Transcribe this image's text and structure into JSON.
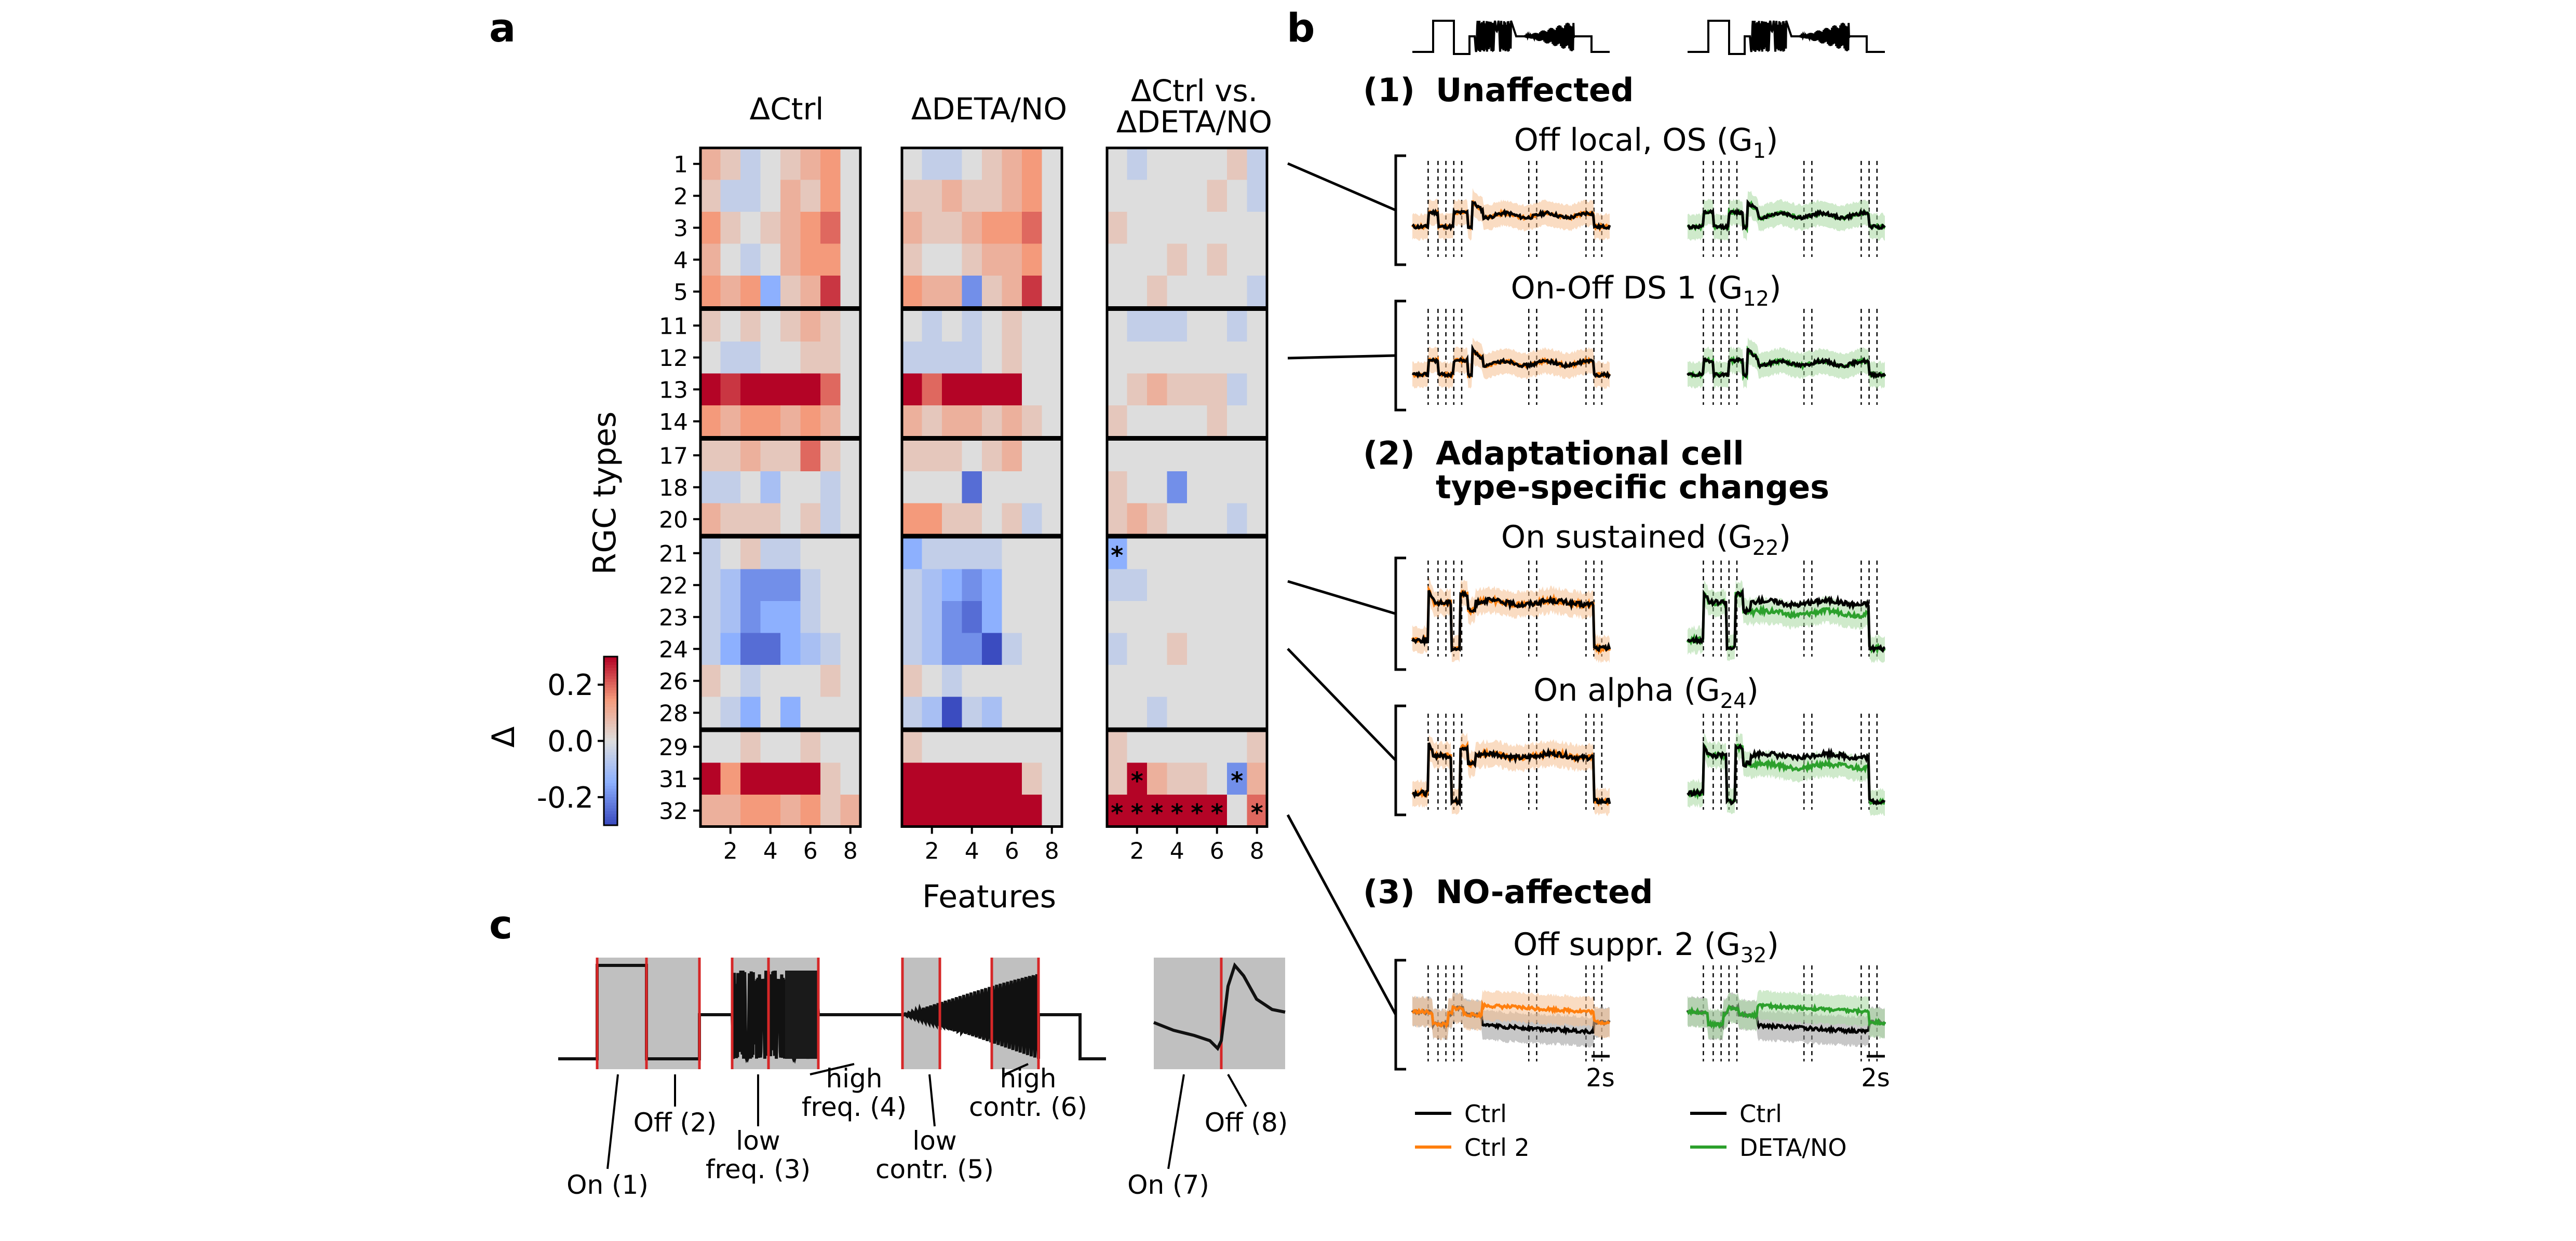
{
  "panel_labels": {
    "a": "a",
    "b": "b",
    "c": "c"
  },
  "heatmaps": {
    "titles": [
      "ΔCtrl",
      "ΔDETA/NO"
    ],
    "title3_line1": "ΔCtrl vs.",
    "title3_line2": "ΔDETA/NO",
    "row_labels": [
      "1",
      "2",
      "3",
      "4",
      "5",
      "11",
      "12",
      "13",
      "14",
      "17",
      "18",
      "20",
      "21",
      "22",
      "23",
      "24",
      "26",
      "28",
      "29",
      "31",
      "32"
    ],
    "group_starts": [
      0,
      5,
      9,
      12,
      18
    ],
    "xtick_labels": [
      "2",
      "4",
      "6",
      "8"
    ],
    "xlabel": "Features",
    "ylabel": "RGC types",
    "colorbar": {
      "label": "Δ",
      "ticks": [
        "0.2",
        "0.0",
        "-0.2"
      ],
      "range": [
        -0.3,
        0.3
      ]
    },
    "values_ctrl": [
      [
        0.1,
        0.05,
        -0.05,
        0.0,
        0.05,
        0.1,
        0.15,
        0.0
      ],
      [
        0.05,
        -0.05,
        -0.05,
        0.0,
        0.1,
        0.05,
        0.15,
        0.0
      ],
      [
        0.15,
        0.05,
        0.0,
        0.05,
        0.1,
        0.15,
        0.2,
        0.0
      ],
      [
        0.1,
        0.0,
        -0.05,
        0.0,
        0.1,
        0.15,
        0.15,
        0.0
      ],
      [
        0.15,
        0.1,
        0.15,
        -0.15,
        0.05,
        0.1,
        0.25,
        0.0
      ],
      [
        0.05,
        0.0,
        0.05,
        0.0,
        0.05,
        0.1,
        0.05,
        0.0
      ],
      [
        0.0,
        -0.05,
        -0.05,
        0.0,
        0.0,
        0.05,
        0.05,
        0.0
      ],
      [
        0.3,
        0.25,
        0.3,
        0.3,
        0.3,
        0.3,
        0.2,
        0.0
      ],
      [
        0.15,
        0.1,
        0.15,
        0.15,
        0.1,
        0.15,
        0.1,
        0.0
      ],
      [
        0.05,
        0.05,
        0.1,
        0.05,
        0.05,
        0.2,
        0.05,
        0.0
      ],
      [
        -0.05,
        -0.05,
        0.0,
        -0.1,
        0.0,
        0.0,
        -0.05,
        0.0
      ],
      [
        0.1,
        0.05,
        0.05,
        0.05,
        0.0,
        0.05,
        -0.05,
        0.0
      ],
      [
        -0.05,
        0.0,
        0.05,
        -0.05,
        -0.05,
        0.0,
        0.0,
        0.0
      ],
      [
        -0.05,
        -0.1,
        -0.2,
        -0.2,
        -0.2,
        -0.05,
        0.0,
        0.0
      ],
      [
        -0.05,
        -0.1,
        -0.2,
        -0.15,
        -0.15,
        -0.05,
        0.0,
        0.0
      ],
      [
        -0.05,
        -0.15,
        -0.25,
        -0.25,
        -0.15,
        -0.1,
        -0.05,
        0.0
      ],
      [
        0.05,
        0.0,
        -0.05,
        0.0,
        0.0,
        0.0,
        0.05,
        0.0
      ],
      [
        0.0,
        -0.05,
        -0.15,
        0.0,
        -0.15,
        0.0,
        0.0,
        0.0
      ],
      [
        0.0,
        0.0,
        0.05,
        0.0,
        0.0,
        0.05,
        0.0,
        0.0
      ],
      [
        0.3,
        0.15,
        0.3,
        0.3,
        0.3,
        0.3,
        0.05,
        0.0
      ],
      [
        0.1,
        0.1,
        0.15,
        0.15,
        0.1,
        0.15,
        0.05,
        0.1
      ]
    ],
    "values_deta": [
      [
        0.0,
        -0.05,
        -0.05,
        0.0,
        0.05,
        0.1,
        0.15,
        0.0
      ],
      [
        0.05,
        0.05,
        0.1,
        0.05,
        0.05,
        0.1,
        0.15,
        0.0
      ],
      [
        0.1,
        0.05,
        0.05,
        0.1,
        0.15,
        0.15,
        0.2,
        0.0
      ],
      [
        0.05,
        0.0,
        0.0,
        0.05,
        0.1,
        0.1,
        0.15,
        0.0
      ],
      [
        0.15,
        0.1,
        0.1,
        -0.2,
        0.05,
        0.1,
        0.25,
        0.0
      ],
      [
        0.0,
        -0.05,
        0.0,
        -0.05,
        0.0,
        0.05,
        0.0,
        0.0
      ],
      [
        -0.05,
        -0.05,
        -0.05,
        -0.05,
        0.0,
        0.05,
        0.0,
        0.0
      ],
      [
        0.3,
        0.2,
        0.3,
        0.3,
        0.3,
        0.3,
        0.0,
        0.0
      ],
      [
        0.1,
        0.05,
        0.1,
        0.1,
        0.05,
        0.1,
        0.05,
        0.0
      ],
      [
        0.05,
        0.05,
        0.05,
        0.0,
        0.05,
        0.1,
        0.0,
        0.0
      ],
      [
        0.0,
        0.0,
        0.0,
        -0.25,
        0.0,
        0.0,
        0.0,
        0.0
      ],
      [
        0.15,
        0.15,
        0.05,
        0.05,
        0.0,
        0.05,
        -0.05,
        0.0
      ],
      [
        -0.15,
        -0.05,
        -0.05,
        -0.05,
        -0.05,
        0.0,
        0.0,
        0.0
      ],
      [
        -0.05,
        -0.1,
        -0.15,
        -0.2,
        -0.15,
        0.0,
        0.0,
        0.0
      ],
      [
        -0.05,
        -0.1,
        -0.2,
        -0.25,
        -0.15,
        0.0,
        0.0,
        0.0
      ],
      [
        -0.05,
        -0.1,
        -0.2,
        -0.2,
        -0.3,
        -0.05,
        0.0,
        0.0
      ],
      [
        0.05,
        0.0,
        -0.05,
        0.0,
        0.0,
        0.0,
        0.0,
        0.0
      ],
      [
        -0.05,
        -0.1,
        -0.3,
        -0.05,
        -0.1,
        0.0,
        0.0,
        0.0
      ],
      [
        0.05,
        0.0,
        0.0,
        0.0,
        0.0,
        0.0,
        0.0,
        0.0
      ],
      [
        0.3,
        0.3,
        0.3,
        0.3,
        0.3,
        0.3,
        0.05,
        0.0
      ],
      [
        0.3,
        0.3,
        0.3,
        0.3,
        0.3,
        0.3,
        0.3,
        0.0
      ]
    ],
    "values_diff": [
      [
        0.0,
        -0.05,
        0.0,
        0.0,
        0.0,
        0.0,
        0.05,
        -0.05
      ],
      [
        0.0,
        0.0,
        0.0,
        0.0,
        0.0,
        0.05,
        0.0,
        -0.05
      ],
      [
        0.05,
        0.0,
        0.0,
        0.0,
        0.0,
        0.0,
        0.0,
        0.0
      ],
      [
        0.0,
        0.0,
        0.0,
        0.05,
        0.0,
        0.05,
        0.0,
        0.0
      ],
      [
        0.0,
        0.0,
        0.05,
        0.0,
        0.0,
        0.0,
        0.0,
        -0.05
      ],
      [
        0.0,
        -0.05,
        -0.05,
        -0.05,
        0.0,
        0.0,
        -0.05,
        0.0
      ],
      [
        0.0,
        0.0,
        0.0,
        0.0,
        0.0,
        0.0,
        0.0,
        0.0
      ],
      [
        0.0,
        0.05,
        0.1,
        0.05,
        0.05,
        0.05,
        -0.05,
        0.0
      ],
      [
        0.05,
        0.0,
        0.0,
        0.0,
        0.0,
        0.05,
        0.0,
        0.0
      ],
      [
        0.0,
        0.0,
        0.0,
        0.0,
        0.0,
        0.0,
        0.0,
        0.0
      ],
      [
        0.05,
        0.0,
        0.0,
        -0.2,
        0.0,
        0.0,
        0.0,
        0.0
      ],
      [
        0.05,
        0.1,
        0.05,
        0.0,
        0.0,
        0.0,
        -0.05,
        0.0
      ],
      [
        -0.15,
        0.0,
        0.0,
        0.0,
        0.0,
        0.0,
        0.0,
        0.0
      ],
      [
        -0.05,
        -0.05,
        0.0,
        0.0,
        0.0,
        0.0,
        0.0,
        0.0
      ],
      [
        0.0,
        0.0,
        0.0,
        0.0,
        0.0,
        0.0,
        0.0,
        0.0
      ],
      [
        -0.05,
        0.0,
        0.0,
        0.05,
        0.0,
        0.0,
        0.0,
        0.0
      ],
      [
        0.0,
        0.0,
        0.0,
        0.0,
        0.0,
        0.0,
        0.0,
        0.0
      ],
      [
        0.0,
        0.0,
        -0.05,
        0.0,
        0.0,
        0.0,
        0.0,
        0.0
      ],
      [
        0.05,
        0.0,
        0.0,
        0.0,
        0.0,
        0.0,
        0.0,
        0.05
      ],
      [
        0.05,
        0.3,
        0.1,
        0.05,
        0.05,
        0.0,
        -0.2,
        0.1
      ],
      [
        0.3,
        0.3,
        0.3,
        0.3,
        0.3,
        0.3,
        0.0,
        0.2
      ]
    ],
    "stars": [
      [
        12,
        0
      ],
      [
        19,
        1
      ],
      [
        19,
        6
      ],
      [
        20,
        0
      ],
      [
        20,
        1
      ],
      [
        20,
        2
      ],
      [
        20,
        3
      ],
      [
        20,
        4
      ],
      [
        20,
        5
      ],
      [
        20,
        7
      ]
    ],
    "star_symbol": "*"
  },
  "panel_b": {
    "sections": [
      {
        "num": "(1)",
        "title": "Unaffected"
      },
      {
        "num": "(2)",
        "title_line1": "Adaptational cell",
        "title_line2": "type-specific changes"
      },
      {
        "num": "(3)",
        "title": "NO-affected"
      }
    ],
    "cell_types": [
      {
        "name": "Off local, OS (G",
        "sub": "1",
        "close": ")"
      },
      {
        "name": "On-Off DS 1 (G",
        "sub": "12",
        "close": ")"
      },
      {
        "name": "On sustained (G",
        "sub": "22",
        "close": ")"
      },
      {
        "name": "On alpha (G",
        "sub": "24",
        "close": ")"
      },
      {
        "name": "Off suppr. 2 (G",
        "sub": "32",
        "close": ")"
      }
    ],
    "scalebar": "2s",
    "legend_left": [
      {
        "label": "Ctrl",
        "color": "#000000"
      },
      {
        "label": "Ctrl 2",
        "color": "#ff7f0e"
      }
    ],
    "legend_right": [
      {
        "label": "Ctrl",
        "color": "#000000"
      },
      {
        "label": "DETA/NO",
        "color": "#2ca02c"
      }
    ],
    "colors": {
      "ctrl": "#000000",
      "ctrl2": "#ff7f0e",
      "deta": "#2ca02c",
      "ctrl2_band": "#f5c08f",
      "deta_band": "#a8d8a0"
    }
  },
  "panel_c": {
    "labels": [
      {
        "text": "On (1)"
      },
      {
        "text": "Off (2)"
      },
      {
        "line1": "low",
        "line2": "freq. (3)"
      },
      {
        "line1": "high",
        "line2": "freq. (4)"
      },
      {
        "line1": "low",
        "line2": "contr. (5)"
      },
      {
        "line1": "high",
        "line2": "contr. (6)"
      },
      {
        "text": "On (7)"
      },
      {
        "text": "Off (8)"
      }
    ],
    "colors": {
      "shade": "#c0c0c0",
      "boundary": "#d62728"
    }
  }
}
